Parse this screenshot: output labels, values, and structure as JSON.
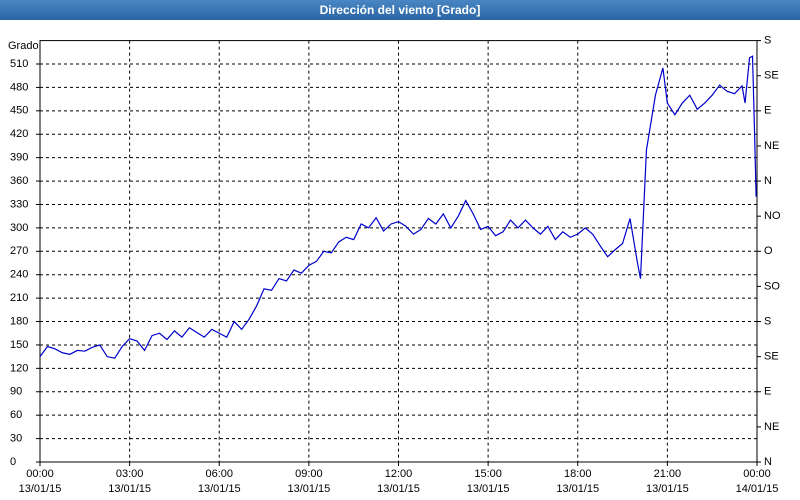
{
  "chart_data": {
    "type": "line",
    "title": "Dirección del viento [Grado]",
    "y_label": "Grado",
    "x": [
      0,
      0.25,
      0.5,
      0.75,
      1,
      1.25,
      1.5,
      1.75,
      2,
      2.25,
      2.5,
      2.75,
      3,
      3.25,
      3.5,
      3.75,
      4,
      4.25,
      4.5,
      4.75,
      5,
      5.25,
      5.5,
      5.75,
      6,
      6.25,
      6.5,
      6.75,
      7,
      7.25,
      7.5,
      7.75,
      8,
      8.25,
      8.5,
      8.75,
      9,
      9.25,
      9.5,
      9.75,
      10,
      10.25,
      10.5,
      10.75,
      11,
      11.25,
      11.5,
      11.75,
      12,
      12.25,
      12.5,
      12.75,
      13,
      13.25,
      13.5,
      13.75,
      14,
      14.25,
      14.5,
      14.75,
      15,
      15.25,
      15.5,
      15.75,
      16,
      16.25,
      16.5,
      16.75,
      17,
      17.25,
      17.5,
      17.75,
      18,
      18.25,
      18.5,
      18.75,
      19,
      19.25,
      19.5,
      19.75,
      20,
      20.1,
      20.3,
      20.6,
      20.85,
      21,
      21.25,
      21.5,
      21.75,
      22,
      22.25,
      22.5,
      22.75,
      23,
      23.25,
      23.5,
      23.6,
      23.75,
      23.85,
      23.92,
      23.97
    ],
    "series": [
      {
        "name": "Dirección del viento",
        "color": "#0000cc",
        "values": [
          135,
          148,
          145,
          140,
          138,
          143,
          142,
          147,
          150,
          135,
          133,
          148,
          158,
          155,
          143,
          162,
          165,
          157,
          168,
          160,
          172,
          166,
          160,
          170,
          165,
          160,
          180,
          170,
          183,
          200,
          222,
          220,
          235,
          232,
          246,
          242,
          252,
          257,
          270,
          268,
          282,
          288,
          285,
          305,
          300,
          313,
          296,
          305,
          308,
          302,
          292,
          298,
          312,
          305,
          318,
          300,
          315,
          335,
          318,
          298,
          302,
          290,
          295,
          310,
          300,
          310,
          300,
          292,
          302,
          285,
          295,
          288,
          292,
          300,
          292,
          277,
          263,
          272,
          280,
          312,
          255,
          235,
          400,
          470,
          505,
          460,
          445,
          460,
          470,
          452,
          460,
          470,
          483,
          475,
          472,
          482,
          460,
          518,
          520,
          420,
          340
        ]
      }
    ],
    "xlim": [
      0,
      24
    ],
    "xticks": [
      {
        "value": 0,
        "label": "00:00\n13/01/15"
      },
      {
        "value": 3,
        "label": "03:00\n13/01/15"
      },
      {
        "value": 6,
        "label": "06:00\n13/01/15"
      },
      {
        "value": 9,
        "label": "09:00\n13/01/15"
      },
      {
        "value": 12,
        "label": "12:00\n13/01/15"
      },
      {
        "value": 15,
        "label": "15:00\n13/01/15"
      },
      {
        "value": 18,
        "label": "18:00\n13/01/15"
      },
      {
        "value": 21,
        "label": "21:00\n13/01/15"
      },
      {
        "value": 24,
        "label": "00:00\n14/01/15"
      }
    ],
    "ylim": [
      0,
      540
    ],
    "yticks": [
      0,
      30,
      60,
      90,
      120,
      150,
      180,
      210,
      240,
      270,
      300,
      330,
      360,
      390,
      420,
      450,
      480,
      510
    ],
    "y2lim": [
      0,
      540
    ],
    "y2ticks": [
      {
        "value": 0,
        "label": "N"
      },
      {
        "value": 45,
        "label": "NE"
      },
      {
        "value": 90,
        "label": "E"
      },
      {
        "value": 135,
        "label": "SE"
      },
      {
        "value": 180,
        "label": "S"
      },
      {
        "value": 225,
        "label": "SO"
      },
      {
        "value": 270,
        "label": "O"
      },
      {
        "value": 315,
        "label": "NO"
      },
      {
        "value": 360,
        "label": "N"
      },
      {
        "value": 405,
        "label": "NE"
      },
      {
        "value": 450,
        "label": "E"
      },
      {
        "value": 495,
        "label": "SE"
      },
      {
        "value": 540,
        "label": "S"
      }
    ],
    "grid": true
  }
}
